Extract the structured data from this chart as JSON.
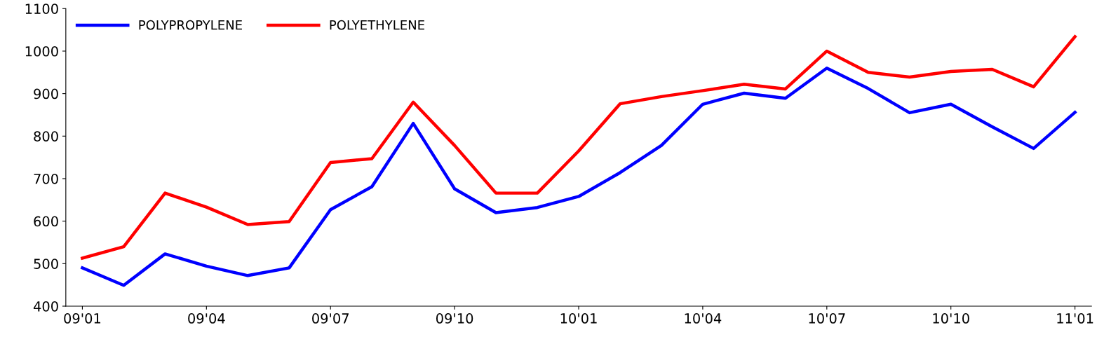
{
  "chart_data": {
    "type": "line",
    "categories": [
      "09'01",
      null,
      null,
      "09'04",
      null,
      null,
      "09'07",
      null,
      null,
      "09'10",
      null,
      null,
      "10'01",
      null,
      null,
      "10'04",
      null,
      null,
      "10'07",
      null,
      null,
      "10'10",
      null,
      null,
      "11'01"
    ],
    "series": [
      {
        "name": "POLYPROPYLENE",
        "color": "#0000ff",
        "values": [
          490,
          449,
          523,
          494,
          472,
          490,
          627,
          681,
          830,
          676,
          620,
          632,
          658,
          714,
          778,
          875,
          901,
          889,
          960,
          912,
          855,
          875,
          822,
          771,
          856
        ]
      },
      {
        "name": "POLYETHYLENE",
        "color": "#ff0000",
        "values": [
          513,
          540,
          666,
          633,
          592,
          599,
          738,
          747,
          880,
          778,
          666,
          666,
          765,
          876,
          893,
          907,
          922,
          911,
          1000,
          950,
          939,
          952,
          957,
          916,
          1034
        ]
      }
    ],
    "ylim": [
      400,
      1100
    ],
    "yticks": [
      400,
      500,
      600,
      700,
      800,
      900,
      1000,
      1100
    ],
    "grid": false,
    "legend": "top left",
    "marker": "none",
    "line_style": "solid"
  }
}
